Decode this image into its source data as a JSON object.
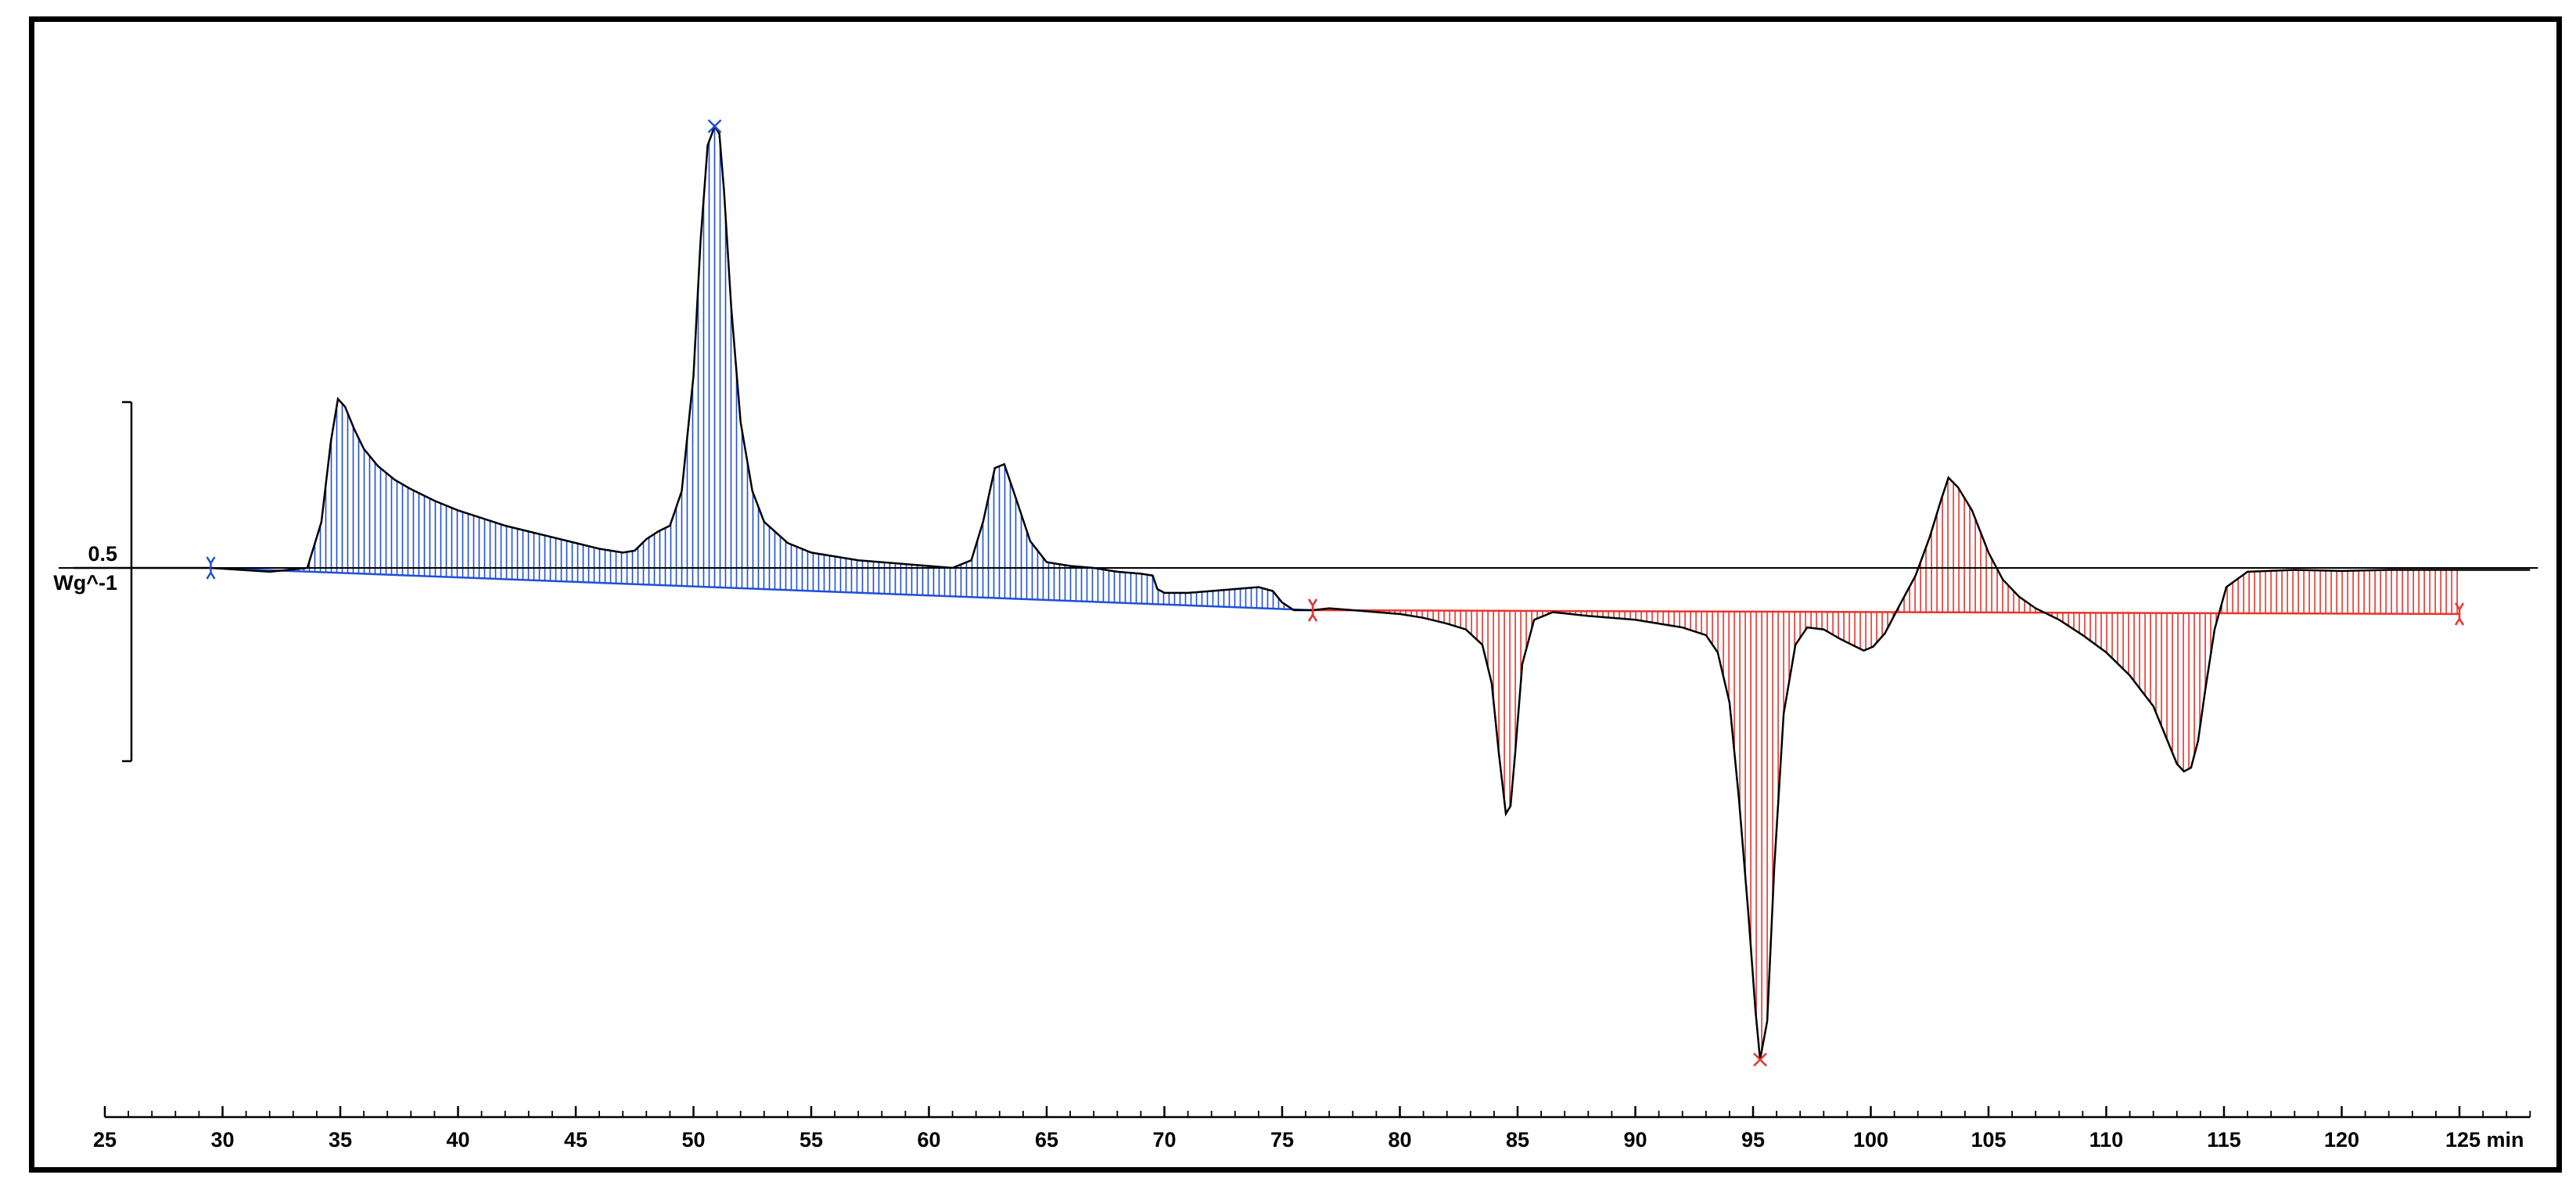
{
  "chart_data": {
    "type": "line",
    "title": "",
    "xlabel": "",
    "ylabel": "",
    "x_unit": "min",
    "xlim": [
      25,
      128
    ],
    "x_ticks_major": [
      25,
      30,
      35,
      40,
      45,
      50,
      55,
      60,
      65,
      70,
      75,
      80,
      85,
      90,
      95,
      100,
      105,
      110,
      115,
      120,
      125
    ],
    "x_tick_labels": [
      "25",
      "30",
      "35",
      "40",
      "45",
      "50",
      "55",
      "60",
      "65",
      "70",
      "75",
      "80",
      "85",
      "90",
      "95",
      "100",
      "105",
      "110",
      "115",
      "120",
      "125 min"
    ],
    "scale_bar": {
      "value_top": "0.5",
      "value_bottom": "Wg^-1",
      "length": 1.0
    },
    "y_ref": 0,
    "grid": false,
    "legend": "none",
    "colors": {
      "region_1": "#1f4fd8",
      "region_2": "#e8342c",
      "curve": "#000000",
      "axis": "#000000"
    },
    "series": [
      {
        "x": [
          29.5,
          32,
          33.6,
          34.2,
          34.6,
          34.9,
          35.2,
          35.6,
          36,
          36.6,
          37.3,
          38,
          39,
          40,
          41,
          42,
          43,
          44,
          45,
          46,
          47,
          47.5,
          48,
          48.5,
          49,
          49.5,
          50,
          50.3,
          50.6,
          50.9,
          51.1,
          51.3,
          51.6,
          52,
          52.5,
          53,
          54,
          55,
          57,
          59,
          61,
          61.8,
          62.3,
          62.8,
          63.2,
          63.7,
          64.3,
          65,
          66,
          67,
          68,
          69,
          69.5,
          69.7,
          70,
          71,
          72,
          73,
          74,
          74.6,
          75,
          75.5,
          76.3,
          77,
          78,
          79,
          80,
          81,
          82,
          82.8,
          83.5,
          83.9,
          84.2,
          84.5,
          84.7,
          84.9,
          85.2,
          85.7,
          86.5,
          88,
          90,
          92,
          93,
          93.5,
          94,
          94.4,
          94.8,
          95.1,
          95.3,
          95.6,
          95.9,
          96.3,
          96.8,
          97.3,
          98,
          98.7,
          99.2,
          99.7,
          100.1,
          100.6,
          101.2,
          101.9,
          102.5,
          103,
          103.3,
          103.7,
          104.3,
          105,
          105.6,
          106.3,
          107,
          108,
          109,
          110,
          111,
          112,
          112.6,
          113,
          113.3,
          113.6,
          113.9,
          114.2,
          114.6,
          115.1,
          116,
          118,
          120,
          122,
          124,
          125,
          128
        ],
        "y": [
          0,
          -0.01,
          0,
          0.12,
          0.33,
          0.44,
          0.42,
          0.36,
          0.31,
          0.265,
          0.23,
          0.205,
          0.175,
          0.15,
          0.13,
          0.11,
          0.095,
          0.08,
          0.065,
          0.05,
          0.04,
          0.045,
          0.075,
          0.095,
          0.11,
          0.2,
          0.5,
          0.85,
          1.1,
          1.15,
          1.13,
          0.98,
          0.68,
          0.38,
          0.2,
          0.12,
          0.065,
          0.04,
          0.02,
          0.01,
          0.0,
          0.02,
          0.12,
          0.26,
          0.27,
          0.18,
          0.07,
          0.015,
          0.005,
          0.0,
          -0.01,
          -0.015,
          -0.02,
          -0.055,
          -0.065,
          -0.065,
          -0.06,
          -0.055,
          -0.05,
          -0.06,
          -0.09,
          -0.11,
          -0.11,
          -0.105,
          -0.11,
          -0.115,
          -0.12,
          -0.13,
          -0.145,
          -0.16,
          -0.2,
          -0.3,
          -0.48,
          -0.64,
          -0.62,
          -0.48,
          -0.25,
          -0.135,
          -0.115,
          -0.125,
          -0.135,
          -0.155,
          -0.175,
          -0.22,
          -0.35,
          -0.6,
          -0.9,
          -1.15,
          -1.28,
          -1.18,
          -0.78,
          -0.38,
          -0.2,
          -0.155,
          -0.16,
          -0.185,
          -0.2,
          -0.215,
          -0.205,
          -0.17,
          -0.1,
          -0.02,
          0.08,
          0.18,
          0.235,
          0.21,
          0.15,
          0.04,
          -0.03,
          -0.075,
          -0.105,
          -0.135,
          -0.175,
          -0.22,
          -0.28,
          -0.36,
          -0.45,
          -0.51,
          -0.53,
          -0.52,
          -0.45,
          -0.32,
          -0.16,
          -0.05,
          -0.01,
          -0.005,
          -0.008,
          -0.005,
          -0.005,
          -0.005,
          -0.005
        ]
      }
    ],
    "regions": [
      {
        "x_start": 29.5,
        "x_end": 76.3,
        "color": "#1f4fd8",
        "baseline_start": 0,
        "baseline_end": -0.11,
        "max_x": 50.9
      },
      {
        "x_start": 76.3,
        "x_end": 125.0,
        "color": "#e8342c",
        "baseline_start": -0.11,
        "baseline_end": -0.12,
        "min_x": 95.3
      }
    ]
  }
}
